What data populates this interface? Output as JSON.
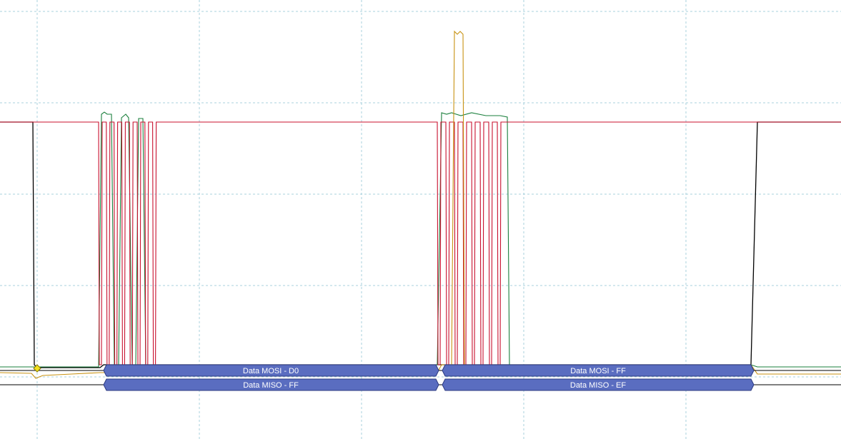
{
  "colors": {
    "background": "#ffffff",
    "grid": "#a8d0dc",
    "cs_channel": "#000000",
    "clk_channel": "#c8102e",
    "mosi_channel": "#1a7f3c",
    "miso_channel": "#c89212",
    "decode_fill": "#5a6dc0",
    "decode_stroke": "#2c3a80",
    "decode_text": "#ffffff",
    "trigger_marker": "#f0e020"
  },
  "decode": {
    "mosi": [
      {
        "label": "Data MOSI - D0"
      },
      {
        "label": "Data MOSI - FF"
      }
    ],
    "miso": [
      {
        "label": "Data MISO - FF"
      },
      {
        "label": "Data MISO - EF"
      }
    ]
  },
  "trigger": {
    "icon": "trigger-diamond-icon"
  }
}
